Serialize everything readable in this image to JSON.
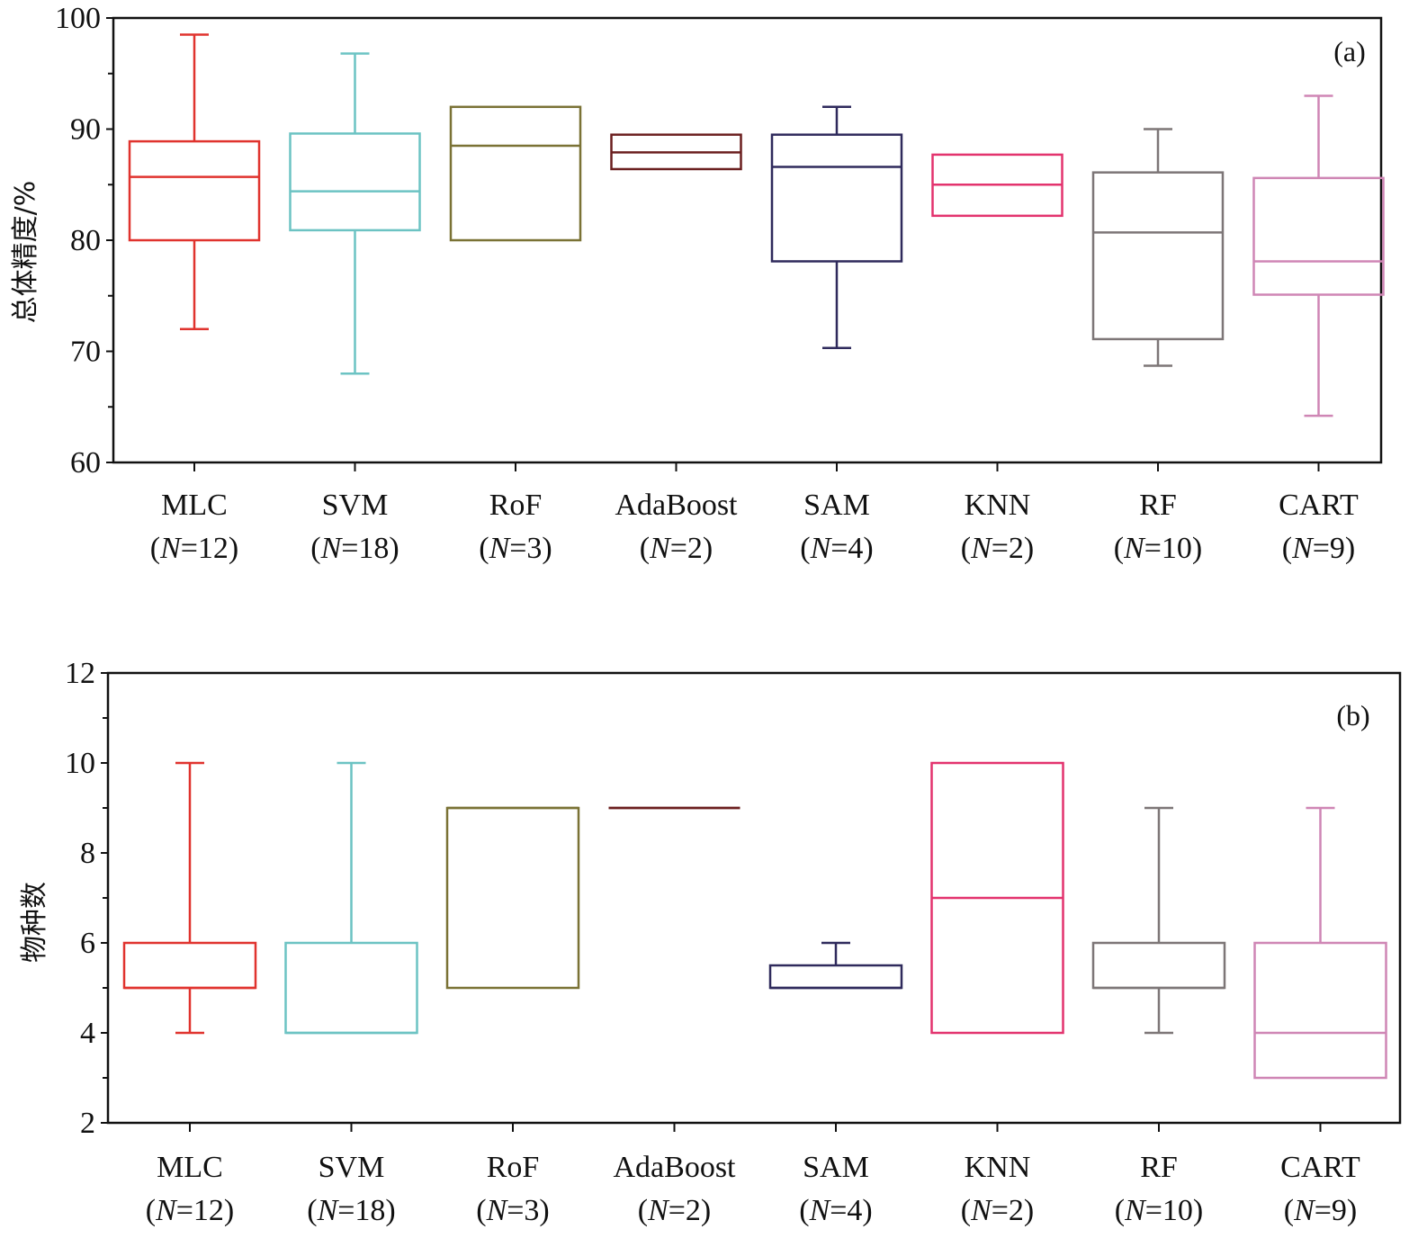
{
  "chart_data": [
    {
      "type": "box",
      "panel_label": "(a)",
      "title": "",
      "xlabel": "",
      "ylabel": "总体精度/%",
      "ylim": [
        60,
        100
      ],
      "yticks": [
        60,
        70,
        80,
        90,
        100
      ],
      "y_minor_step": 5,
      "grid": false,
      "legend": "none",
      "categories": [
        {
          "name": "MLC",
          "n": "12",
          "color": "#e0332e",
          "whisker_low": 72,
          "q1": 80,
          "median": 85.7,
          "q3": 88.9,
          "whisker_high": 98.5
        },
        {
          "name": "SVM",
          "n": "18",
          "color": "#6cc3c3",
          "whisker_low": 68,
          "q1": 80.9,
          "median": 84.4,
          "q3": 89.6,
          "whisker_high": 96.8
        },
        {
          "name": "RoF",
          "n": "3",
          "color": "#7a7235",
          "whisker_low": null,
          "q1": 80,
          "median": 88.5,
          "q3": 92,
          "whisker_high": null
        },
        {
          "name": "AdaBoost",
          "n": "2",
          "color": "#6b1f1f",
          "whisker_low": null,
          "q1": 86.4,
          "median": 87.9,
          "q3": 89.5,
          "whisker_high": null
        },
        {
          "name": "SAM",
          "n": "4",
          "color": "#2f2a5c",
          "whisker_low": 70.3,
          "q1": 78.1,
          "median": 86.6,
          "q3": 89.5,
          "whisker_high": 92
        },
        {
          "name": "KNN",
          "n": "2",
          "color": "#e3336e",
          "whisker_low": null,
          "q1": 82.2,
          "median": 85,
          "q3": 87.7,
          "whisker_high": null
        },
        {
          "name": "RF",
          "n": "10",
          "color": "#7d7677",
          "whisker_low": 68.7,
          "q1": 71.1,
          "median": 80.7,
          "q3": 86.1,
          "whisker_high": 90
        },
        {
          "name": "CART",
          "n": "9",
          "color": "#cf86b5",
          "whisker_low": 64.2,
          "q1": 75.1,
          "median": 78.1,
          "q3": 85.6,
          "whisker_high": 93
        }
      ]
    },
    {
      "type": "box",
      "panel_label": "(b)",
      "title": "",
      "xlabel": "",
      "ylabel": "物种数",
      "ylim": [
        2,
        12
      ],
      "yticks": [
        2,
        4,
        6,
        8,
        10,
        12
      ],
      "y_minor_step": 1,
      "grid": false,
      "legend": "none",
      "categories": [
        {
          "name": "MLC",
          "n": "12",
          "color": "#e0332e",
          "whisker_low": 4,
          "q1": 5,
          "median": 5,
          "q3": 6,
          "whisker_high": 10
        },
        {
          "name": "SVM",
          "n": "18",
          "color": "#6cc3c3",
          "whisker_low": 4,
          "q1": 4,
          "median": 4,
          "q3": 6,
          "whisker_high": 10
        },
        {
          "name": "RoF",
          "n": "3",
          "color": "#7a7235",
          "whisker_low": null,
          "q1": 5,
          "median": 9,
          "q3": 9,
          "whisker_high": null
        },
        {
          "name": "AdaBoost",
          "n": "2",
          "color": "#6b1f1f",
          "whisker_low": null,
          "q1": 9,
          "median": 9,
          "q3": 9,
          "whisker_high": null
        },
        {
          "name": "SAM",
          "n": "4",
          "color": "#2f2a5c",
          "whisker_low": 5,
          "q1": 5,
          "median": 5,
          "q3": 5.5,
          "whisker_high": 6
        },
        {
          "name": "KNN",
          "n": "2",
          "color": "#e3336e",
          "whisker_low": null,
          "q1": 4,
          "median": 7,
          "q3": 10,
          "whisker_high": null
        },
        {
          "name": "RF",
          "n": "10",
          "color": "#7d7677",
          "whisker_low": 4,
          "q1": 5,
          "median": 5,
          "q3": 6,
          "whisker_high": 9
        },
        {
          "name": "CART",
          "n": "9",
          "color": "#cf86b5",
          "whisker_low": 3,
          "q1": 3,
          "median": 4,
          "q3": 6,
          "whisker_high": 9
        }
      ]
    }
  ],
  "n_prefix": "(",
  "n_symbol": "N",
  "n_eq": "=",
  "n_suffix": ")"
}
